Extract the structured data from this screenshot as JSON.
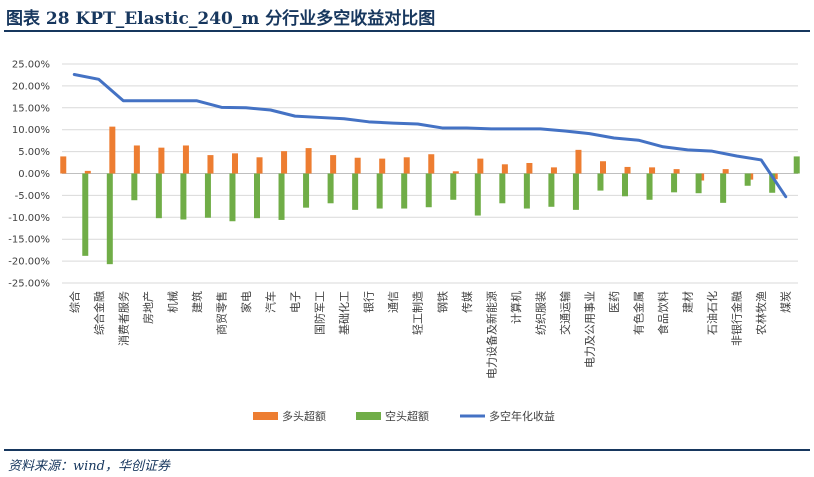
{
  "figure": {
    "title": "图表 28    KPT_Elastic_240_m 分行业多空收益对比图",
    "source": "资料来源：wind，华创证券"
  },
  "colors": {
    "long": "#ed7d31",
    "short": "#70ad47",
    "line": "#4472c4",
    "title": "#17375e"
  },
  "chart_data": {
    "type": "bar",
    "categories": [
      "综合",
      "综合金融",
      "消费者服务",
      "房地产",
      "机械",
      "建筑",
      "商贸零售",
      "家电",
      "汽车",
      "电子",
      "国防军工",
      "基础化工",
      "银行",
      "通信",
      "轻工制造",
      "钢铁",
      "传媒",
      "电力设备及新能源",
      "计算机",
      "纺织服装",
      "交通运输",
      "电力及公用事业",
      "医药",
      "有色金属",
      "食品饮料",
      "建材",
      "石油石化",
      "非银行金融",
      "农林牧渔",
      "煤炭"
    ],
    "series": [
      {
        "name": "多头超额",
        "type": "bar",
        "values": [
          3.9,
          0.6,
          10.7,
          6.4,
          5.9,
          6.4,
          4.2,
          4.6,
          3.7,
          5.1,
          5.8,
          4.2,
          3.6,
          3.4,
          3.7,
          4.4,
          0.5,
          3.4,
          2.1,
          2.4,
          1.4,
          5.4,
          2.8,
          1.5,
          1.4,
          1.0,
          -1.6,
          1.0,
          -1.4,
          -1.3
        ]
      },
      {
        "name": "空头超额",
        "type": "bar",
        "values": [
          -18.8,
          -20.7,
          -6.1,
          -10.2,
          -10.5,
          -10.1,
          -10.9,
          -10.2,
          -10.6,
          -7.8,
          -6.8,
          -8.3,
          -8.0,
          -8.0,
          -7.7,
          -6.0,
          -9.6,
          -6.8,
          -8.0,
          -7.6,
          -8.3,
          -3.9,
          -5.2,
          -6.0,
          -4.3,
          -4.5,
          -6.7,
          -2.8,
          -4.4,
          3.9
        ]
      },
      {
        "name": "多空年化收益",
        "type": "line",
        "values": [
          22.6,
          21.5,
          16.6,
          16.6,
          16.6,
          16.6,
          15.1,
          15.0,
          14.5,
          13.1,
          12.8,
          12.5,
          11.8,
          11.5,
          11.3,
          10.4,
          10.4,
          10.2,
          10.2,
          10.2,
          9.7,
          9.1,
          8.1,
          7.6,
          6.1,
          5.4,
          5.1,
          4.0,
          3.1,
          -5.3
        ]
      }
    ],
    "yticks": [
      "25.00%",
      "20.00%",
      "15.00%",
      "10.00%",
      "5.00%",
      "0.00%",
      "-5.00%",
      "-10.00%",
      "-15.00%",
      "-20.00%",
      "-25.00%"
    ],
    "ylim": [
      -25,
      25
    ],
    "ystep": 5,
    "grid": true,
    "legend": "bottom",
    "xlabel": "",
    "ylabel": ""
  }
}
